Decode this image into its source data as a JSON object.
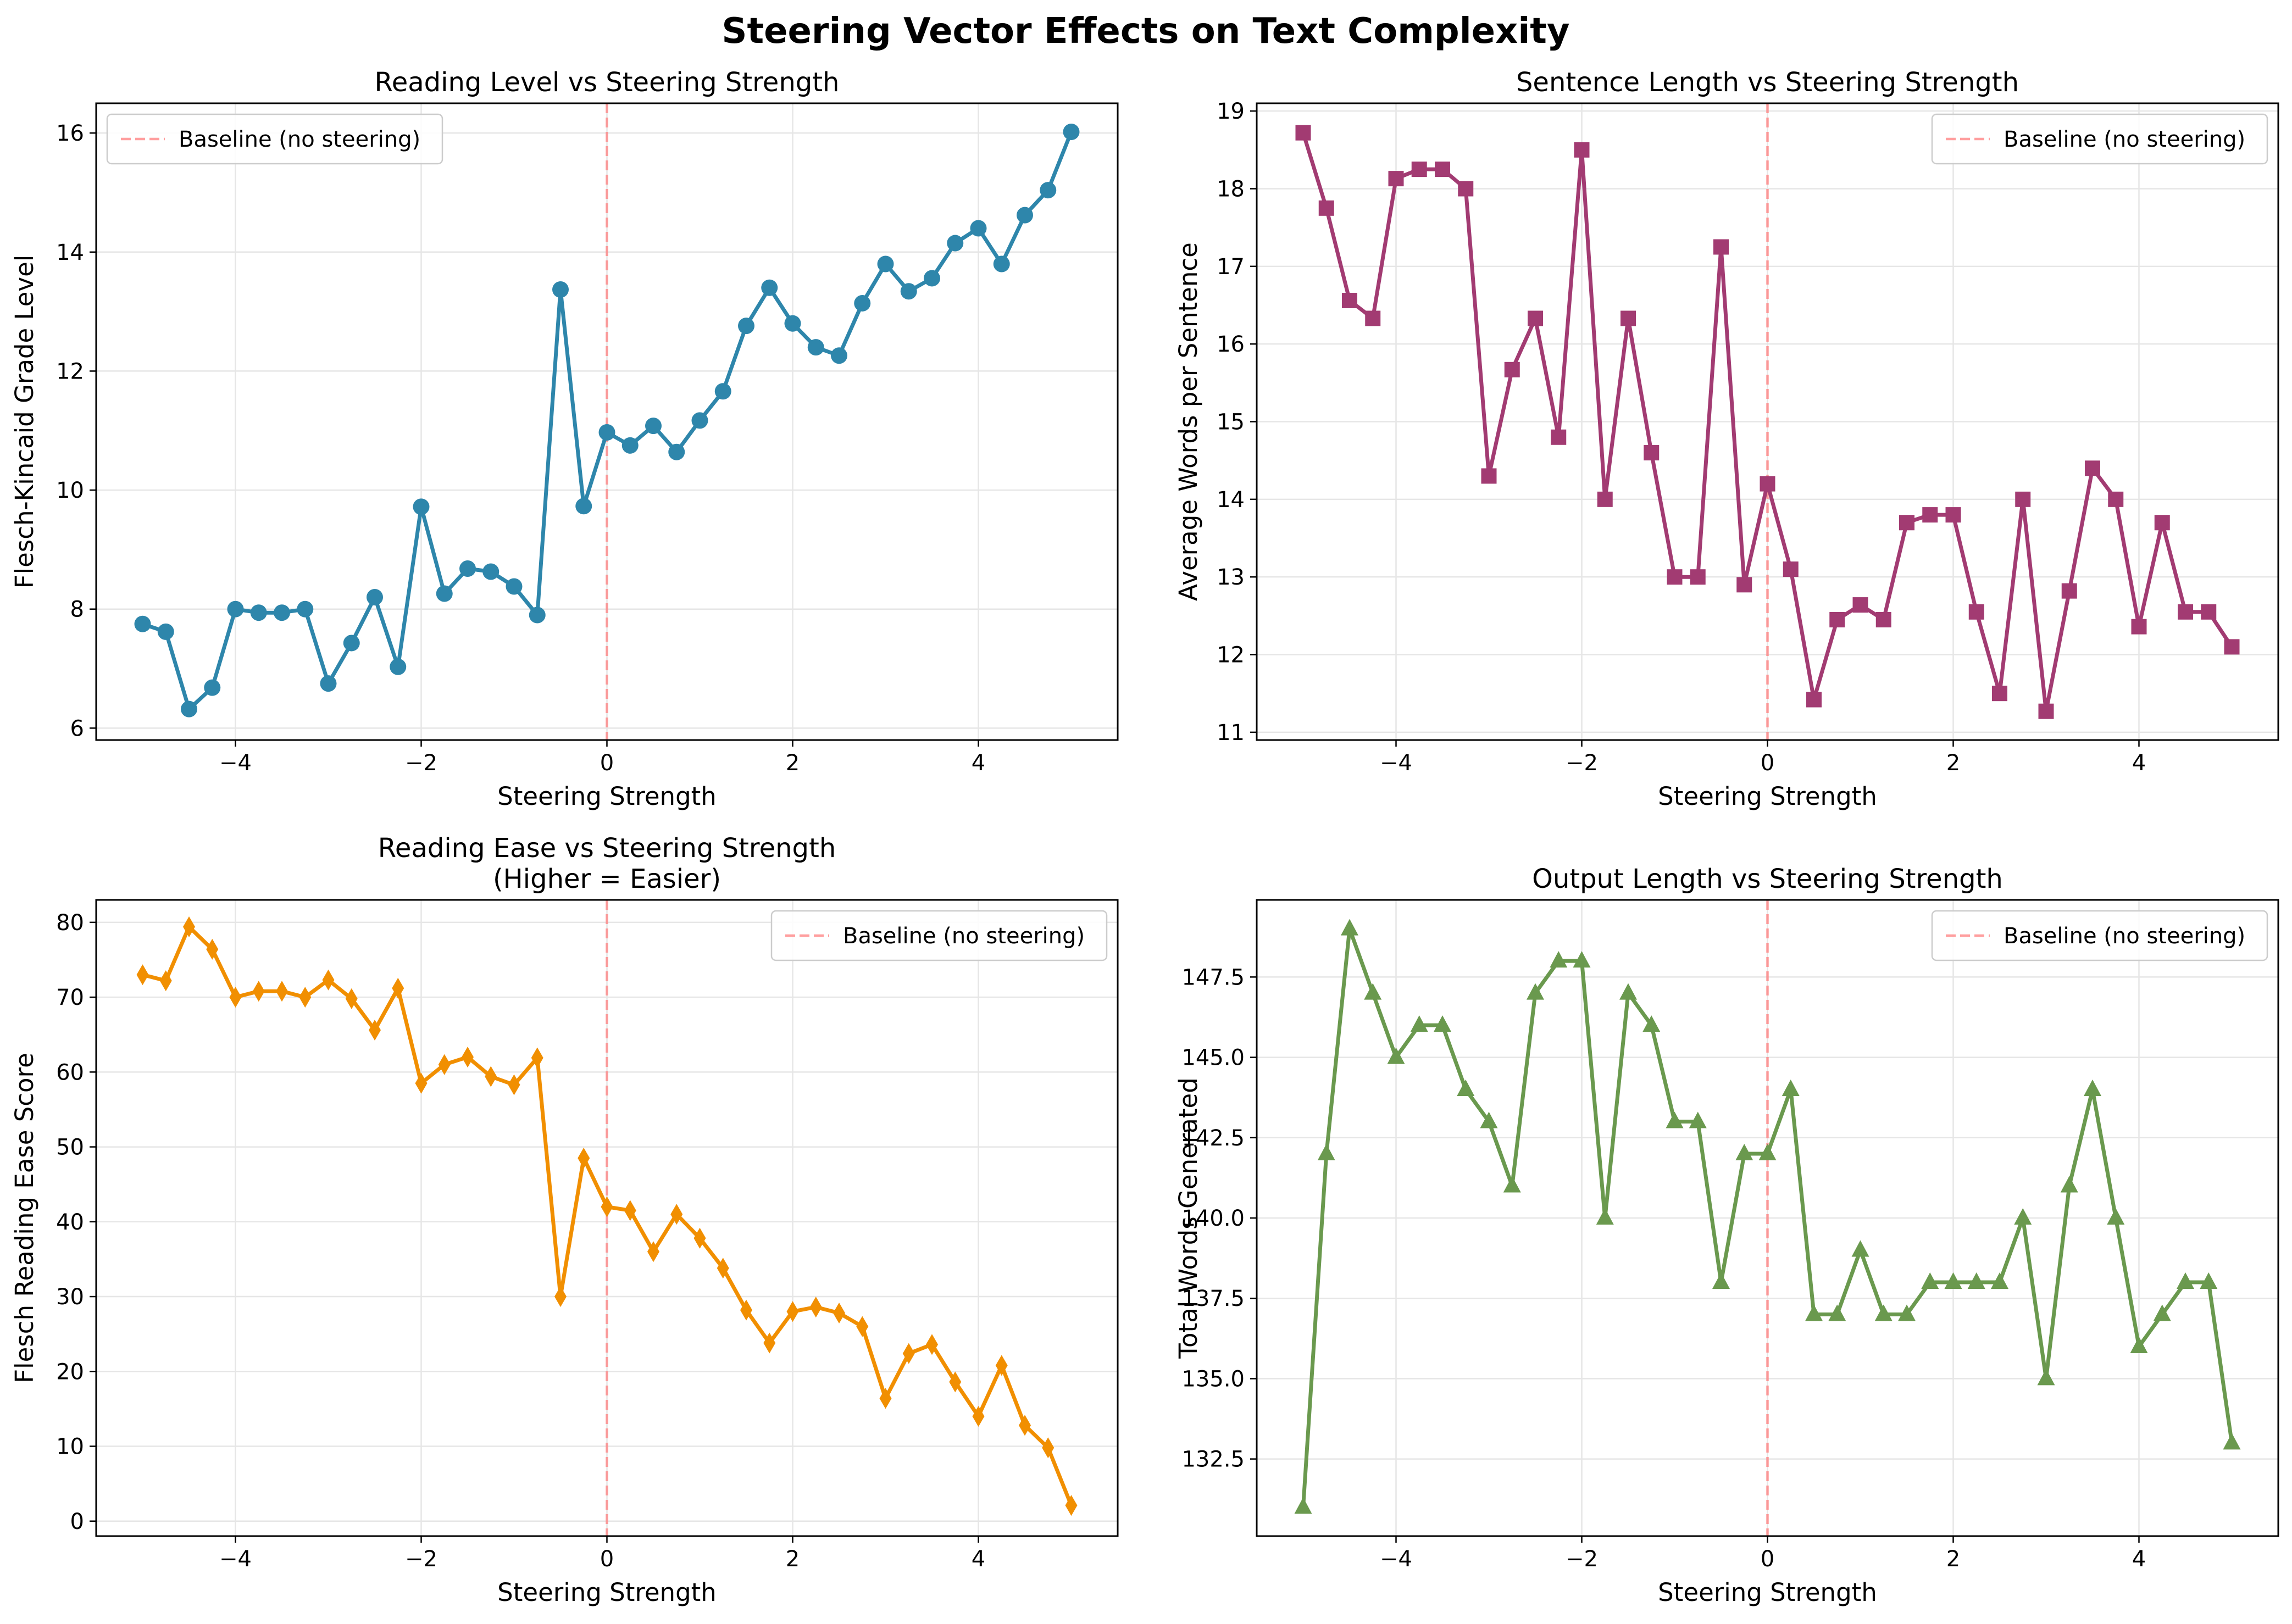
{
  "figure": {
    "suptitle": "Steering Vector Effects on Text Complexity"
  },
  "chart_data": [
    {
      "type": "line",
      "title": "Reading Level vs Steering Strength",
      "xlabel": "Steering Strength",
      "ylabel": "Flesch-Kincaid Grade Level",
      "xlim": [
        -5.5,
        5.5
      ],
      "ylim": [
        5.8,
        16.5
      ],
      "xticks": [
        -4,
        -2,
        0,
        2,
        4
      ],
      "xtick_labels": [
        "−4",
        "−2",
        "0",
        "2",
        "4"
      ],
      "yticks": [
        6,
        8,
        10,
        12,
        14,
        16
      ],
      "ytick_labels": [
        "6",
        "8",
        "10",
        "12",
        "14",
        "16"
      ],
      "grid": true,
      "legend_position": "upper-left",
      "marker": "circle",
      "color": "#2e86ab",
      "x": [
        -5,
        -4.75,
        -4.5,
        -4.25,
        -4,
        -3.75,
        -3.5,
        -3.25,
        -3,
        -2.75,
        -2.5,
        -2.25,
        -2,
        -1.75,
        -1.5,
        -1.25,
        -1,
        -0.75,
        -0.5,
        -0.25,
        0,
        0.25,
        0.5,
        0.75,
        1,
        1.25,
        1.5,
        1.75,
        2,
        2.25,
        2.5,
        2.75,
        3,
        3.25,
        3.5,
        3.75,
        4,
        4.25,
        4.5,
        4.75,
        5
      ],
      "y": [
        7.75,
        7.62,
        6.32,
        6.68,
        8.0,
        7.94,
        7.94,
        8.0,
        6.75,
        7.43,
        8.2,
        7.03,
        9.72,
        8.26,
        8.68,
        8.63,
        8.38,
        7.9,
        13.37,
        9.73,
        10.97,
        10.75,
        11.08,
        10.64,
        11.17,
        11.66,
        12.76,
        13.4,
        12.8,
        12.4,
        12.26,
        13.14,
        13.8,
        13.34,
        13.56,
        14.15,
        14.4,
        13.8,
        14.62,
        15.04,
        16.02
      ],
      "baseline": {
        "x": 0,
        "label": "Baseline (no steering)",
        "color": "#ff7f7f"
      }
    },
    {
      "type": "line",
      "title": "Sentence Length vs Steering Strength",
      "xlabel": "Steering Strength",
      "ylabel": "Average Words per Sentence",
      "xlim": [
        -5.5,
        5.5
      ],
      "ylim": [
        10.9,
        19.1
      ],
      "xticks": [
        -4,
        -2,
        0,
        2,
        4
      ],
      "xtick_labels": [
        "−4",
        "−2",
        "0",
        "2",
        "4"
      ],
      "yticks": [
        11,
        12,
        13,
        14,
        15,
        16,
        17,
        18,
        19
      ],
      "ytick_labels": [
        "11",
        "12",
        "13",
        "14",
        "15",
        "16",
        "17",
        "18",
        "19"
      ],
      "grid": true,
      "legend_position": "upper-right",
      "marker": "square",
      "color": "#a23b72",
      "x": [
        -5,
        -4.75,
        -4.5,
        -4.25,
        -4,
        -3.75,
        -3.5,
        -3.25,
        -3,
        -2.75,
        -2.5,
        -2.25,
        -2,
        -1.75,
        -1.5,
        -1.25,
        -1,
        -0.75,
        -0.5,
        -0.25,
        0,
        0.25,
        0.5,
        0.75,
        1,
        1.25,
        1.5,
        1.75,
        2,
        2.25,
        2.5,
        2.75,
        3,
        3.25,
        3.5,
        3.75,
        4,
        4.25,
        4.5,
        4.75,
        5
      ],
      "y": [
        18.72,
        17.75,
        16.56,
        16.33,
        18.13,
        18.25,
        18.25,
        18.0,
        14.3,
        15.67,
        16.33,
        14.8,
        18.5,
        14.0,
        16.33,
        14.6,
        13.0,
        13.0,
        17.25,
        12.9,
        14.2,
        13.1,
        11.42,
        12.45,
        12.64,
        12.45,
        13.7,
        13.8,
        13.8,
        12.55,
        11.5,
        14.0,
        11.27,
        12.82,
        14.4,
        14.0,
        12.36,
        13.7,
        12.55,
        12.55,
        12.1
      ],
      "baseline": {
        "x": 0,
        "label": "Baseline (no steering)",
        "color": "#ff7f7f"
      }
    },
    {
      "type": "line",
      "title": "Reading Ease vs Steering Strength\n(Higher = Easier)",
      "title_lines": [
        "Reading Ease vs Steering Strength",
        "(Higher = Easier)"
      ],
      "xlabel": "Steering Strength",
      "ylabel": "Flesch Reading Ease Score",
      "xlim": [
        -5.5,
        5.5
      ],
      "ylim": [
        -2,
        83
      ],
      "xticks": [
        -4,
        -2,
        0,
        2,
        4
      ],
      "xtick_labels": [
        "−4",
        "−2",
        "0",
        "2",
        "4"
      ],
      "yticks": [
        0,
        10,
        20,
        30,
        40,
        50,
        60,
        70,
        80
      ],
      "ytick_labels": [
        "0",
        "10",
        "20",
        "30",
        "40",
        "50",
        "60",
        "70",
        "80"
      ],
      "grid": true,
      "legend_position": "upper-right",
      "marker": "thin-diamond",
      "color": "#f18f01",
      "x": [
        -5,
        -4.75,
        -4.5,
        -4.25,
        -4,
        -3.75,
        -3.5,
        -3.25,
        -3,
        -2.75,
        -2.5,
        -2.25,
        -2,
        -1.75,
        -1.5,
        -1.25,
        -1,
        -0.75,
        -0.5,
        -0.25,
        0,
        0.25,
        0.5,
        0.75,
        1,
        1.25,
        1.5,
        1.75,
        2,
        2.25,
        2.5,
        2.75,
        3,
        3.25,
        3.5,
        3.75,
        4,
        4.25,
        4.5,
        4.75,
        5
      ],
      "y": [
        73.0,
        72.2,
        79.4,
        76.4,
        70.0,
        70.8,
        70.8,
        70.0,
        72.3,
        69.8,
        65.6,
        71.2,
        58.5,
        61.0,
        62.0,
        59.4,
        58.3,
        61.9,
        30.0,
        48.5,
        42.0,
        41.5,
        36.0,
        41.0,
        37.8,
        33.8,
        28.2,
        23.8,
        28.0,
        28.6,
        27.8,
        26.0,
        16.4,
        22.4,
        23.6,
        18.6,
        14.0,
        20.8,
        12.8,
        9.8,
        2.1
      ],
      "baseline": {
        "x": 0,
        "label": "Baseline (no steering)",
        "color": "#ff7f7f"
      }
    },
    {
      "type": "line",
      "title": "Output Length vs Steering Strength",
      "xlabel": "Steering Strength",
      "ylabel": "Total Words Generated",
      "xlim": [
        -5.5,
        5.5
      ],
      "ylim": [
        130.1,
        149.9
      ],
      "xticks": [
        -4,
        -2,
        0,
        2,
        4
      ],
      "xtick_labels": [
        "−4",
        "−2",
        "0",
        "2",
        "4"
      ],
      "yticks": [
        132.5,
        135.0,
        137.5,
        140.0,
        142.5,
        145.0,
        147.5
      ],
      "ytick_labels": [
        "132.5",
        "135.0",
        "137.5",
        "140.0",
        "142.5",
        "145.0",
        "147.5"
      ],
      "grid": true,
      "legend_position": "upper-right",
      "marker": "triangle",
      "color": "#6a994e",
      "x": [
        -5,
        -4.75,
        -4.5,
        -4.25,
        -4,
        -3.75,
        -3.5,
        -3.25,
        -3,
        -2.75,
        -2.5,
        -2.25,
        -2,
        -1.75,
        -1.5,
        -1.25,
        -1,
        -0.75,
        -0.5,
        -0.25,
        0,
        0.25,
        0.5,
        0.75,
        1,
        1.25,
        1.5,
        1.75,
        2,
        2.25,
        2.5,
        2.75,
        3,
        3.25,
        3.5,
        3.75,
        4,
        4.25,
        4.5,
        4.75,
        5
      ],
      "y": [
        131,
        142,
        149,
        147,
        145,
        146,
        146,
        144,
        143,
        141,
        147,
        148,
        148,
        140,
        147,
        146,
        143,
        143,
        138,
        142,
        142,
        144,
        137,
        137,
        139,
        137,
        137,
        138,
        138,
        138,
        138,
        140,
        135,
        141,
        144,
        140,
        136,
        137,
        138,
        138,
        133
      ],
      "baseline": {
        "x": 0,
        "label": "Baseline (no steering)",
        "color": "#ff7f7f"
      }
    }
  ]
}
